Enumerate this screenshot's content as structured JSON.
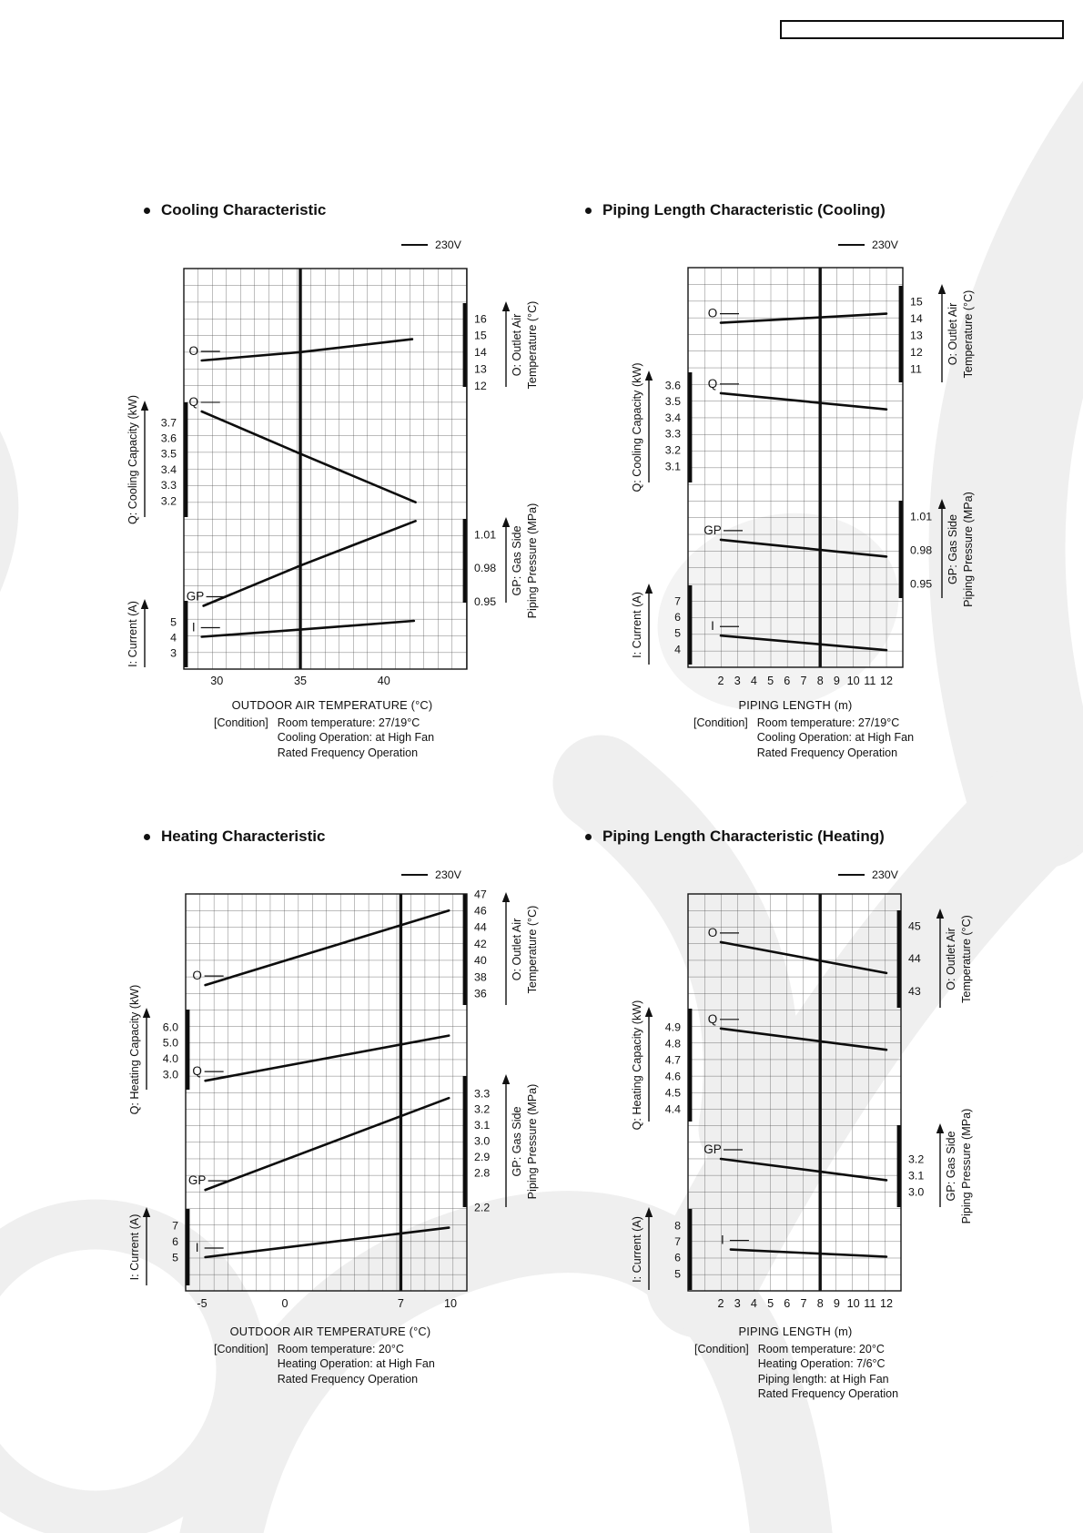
{
  "page": {
    "header_note": ""
  },
  "chart_data": [
    {
      "type": "line",
      "title": "Cooling Characteristic",
      "legend": "230V",
      "xlabel": "OUTDOOR AIR TEMPERATURE (°C)",
      "x_ticks": [
        "30",
        "35",
        "40"
      ],
      "x_range": [
        28,
        45
      ],
      "rated_line_x": 35,
      "condition_label": "[Condition]",
      "conditions": [
        "Room temperature: 27/19°C",
        "Cooling Operation: at High Fan",
        "Rated Frequency Operation"
      ],
      "series": [
        {
          "key": "O",
          "axis_title": [
            "O: Outlet Air",
            "Temperature (°C)"
          ],
          "unit_side": "right",
          "ticks": [
            "16",
            "15",
            "14",
            "13",
            "12"
          ],
          "points": [
            [
              29.1,
              13.5
            ],
            [
              35,
              14.0
            ],
            [
              41.7,
              14.77
            ]
          ]
        },
        {
          "key": "Q",
          "axis_title": [
            "Q: Cooling Capacity (kW)"
          ],
          "unit_side": "left",
          "ticks": [
            "3.7",
            "3.6",
            "3.5",
            "3.4",
            "3.3",
            "3.2"
          ],
          "points": [
            [
              29.1,
              3.77
            ],
            [
              35,
              3.5
            ],
            [
              41.9,
              3.19
            ]
          ]
        },
        {
          "key": "GP",
          "axis_title": [
            "GP: Gas Side",
            "Piping Pressure (MPa)"
          ],
          "unit_side": "right",
          "ticks": [
            "1.01",
            "0.98",
            "0.95"
          ],
          "points": [
            [
              29.2,
              0.946
            ],
            [
              35,
              0.982
            ],
            [
              41.9,
              1.022
            ]
          ]
        },
        {
          "key": "I",
          "axis_title": [
            "I: Current (A)"
          ],
          "unit_side": "left",
          "ticks": [
            "5",
            "4",
            "3"
          ],
          "points": [
            [
              29.1,
              4.04
            ],
            [
              35,
              4.5
            ],
            [
              41.8,
              5.06
            ]
          ]
        }
      ]
    },
    {
      "type": "line",
      "title": "Piping Length Characteristic (Cooling)",
      "legend": "230V",
      "xlabel": "PIPING LENGTH (m)",
      "x_ticks": [
        "2",
        "3",
        "4",
        "5",
        "6",
        "7",
        "8",
        "9",
        "10",
        "11",
        "12"
      ],
      "x_range": [
        0,
        13
      ],
      "rated_line_x": 8,
      "condition_label": "[Condition]",
      "conditions": [
        "Room temperature: 27/19°C",
        "Cooling Operation: at High Fan",
        "Rated Frequency Operation"
      ],
      "series": [
        {
          "key": "O",
          "axis_title": [
            "O: Outlet Air",
            "Temperature (°C)"
          ],
          "unit_side": "right",
          "ticks": [
            "15",
            "14",
            "13",
            "12",
            "11"
          ],
          "points": [
            [
              2,
              13.73
            ],
            [
              12,
              14.27
            ]
          ]
        },
        {
          "key": "Q",
          "axis_title": [
            "Q: Cooling Capacity (kW)"
          ],
          "unit_side": "left",
          "ticks": [
            "3.6",
            "3.5",
            "3.4",
            "3.3",
            "3.2",
            "3.1"
          ],
          "points": [
            [
              2,
              3.55
            ],
            [
              12,
              3.45
            ]
          ]
        },
        {
          "key": "GP",
          "axis_title": [
            "GP: Gas Side",
            "Piping Pressure (MPa)"
          ],
          "unit_side": "right",
          "ticks": [
            "1.01",
            "0.98",
            "0.95"
          ],
          "points": [
            [
              2,
              0.989
            ],
            [
              12,
              0.974
            ]
          ]
        },
        {
          "key": "I",
          "axis_title": [
            "I: Current (A)"
          ],
          "unit_side": "left",
          "ticks": [
            "7",
            "6",
            "5",
            "4"
          ],
          "points": [
            [
              2,
              4.84
            ],
            [
              12,
              3.94
            ]
          ]
        }
      ]
    },
    {
      "type": "line",
      "title": "Heating Characteristic",
      "legend": "230V",
      "xlabel": "OUTDOOR AIR TEMPERATURE (°C)",
      "x_ticks": [
        "-5",
        "0",
        "7",
        "10"
      ],
      "x_range": [
        -6,
        11
      ],
      "rated_line_x": 7,
      "condition_label": "[Condition]",
      "conditions": [
        "Room temperature: 20°C",
        "Heating Operation: at High Fan",
        "Rated Frequency Operation"
      ],
      "series": [
        {
          "key": "O",
          "axis_title": [
            "O: Outlet Air",
            "Temperature (°C)"
          ],
          "unit_side": "right",
          "ticks": [
            "47",
            "46",
            "44",
            "42",
            "40",
            "38",
            "36"
          ],
          "points": [
            [
              -4.8,
              37.0
            ],
            [
              9.9,
              46.0
            ]
          ]
        },
        {
          "key": "Q",
          "axis_title": [
            "Q: Heating Capacity (kW)"
          ],
          "unit_side": "left",
          "ticks": [
            "6.0",
            "5.0",
            "4.0",
            "3.0"
          ],
          "points": [
            [
              -4.8,
              2.6
            ],
            [
              9.9,
              5.45
            ]
          ]
        },
        {
          "key": "GP",
          "axis_title": [
            "GP: Gas Side",
            "Piping Pressure (MPa)"
          ],
          "unit_side": "right",
          "ticks": [
            "3.3",
            "3.2",
            "3.1",
            "3.0",
            "2.9",
            "2.8",
            "2.2"
          ],
          "points": [
            [
              -4.8,
              2.5
            ],
            [
              9.9,
              3.27
            ]
          ]
        },
        {
          "key": "I",
          "axis_title": [
            "I: Current (A)"
          ],
          "unit_side": "left",
          "ticks": [
            "7",
            "6",
            "5"
          ],
          "points": [
            [
              -4.8,
              5.0
            ],
            [
              9.9,
              6.85
            ]
          ]
        }
      ]
    },
    {
      "type": "line",
      "title": "Piping Length Characteristic (Heating)",
      "legend": "230V",
      "xlabel": "PIPING LENGTH (m)",
      "x_ticks": [
        "2",
        "3",
        "4",
        "5",
        "6",
        "7",
        "8",
        "9",
        "10",
        "11",
        "12"
      ],
      "x_range": [
        0,
        13
      ],
      "rated_line_x": 8,
      "condition_label": "[Condition]",
      "conditions": [
        "Room temperature: 20°C",
        "Heating Operation: 7/6°C",
        "Piping length: at High Fan",
        "Rated Frequency Operation"
      ],
      "series": [
        {
          "key": "O",
          "axis_title": [
            "O: Outlet Air",
            "Temperature (°C)"
          ],
          "unit_side": "right",
          "ticks": [
            "45",
            "44",
            "43"
          ],
          "points": [
            [
              2,
              44.5
            ],
            [
              12,
              43.55
            ]
          ]
        },
        {
          "key": "Q",
          "axis_title": [
            "Q: Heating Capacity (kW)"
          ],
          "unit_side": "left",
          "ticks": [
            "4.9",
            "4.8",
            "4.7",
            "4.6",
            "4.5",
            "4.4"
          ],
          "points": [
            [
              2,
              4.89
            ],
            [
              12,
              4.76
            ]
          ]
        },
        {
          "key": "GP",
          "axis_title": [
            "GP: Gas Side",
            "Piping Pressure (MPa)"
          ],
          "unit_side": "right",
          "ticks": [
            "3.2",
            "3.1",
            "3.0"
          ],
          "points": [
            [
              2,
              3.2
            ],
            [
              12,
              3.07
            ]
          ]
        },
        {
          "key": "I",
          "axis_title": [
            "I: Current (A)"
          ],
          "unit_side": "left",
          "ticks": [
            "8",
            "7",
            "6",
            "5"
          ],
          "points": [
            [
              2.6,
              6.5
            ],
            [
              12,
              6.05
            ]
          ]
        }
      ]
    }
  ]
}
